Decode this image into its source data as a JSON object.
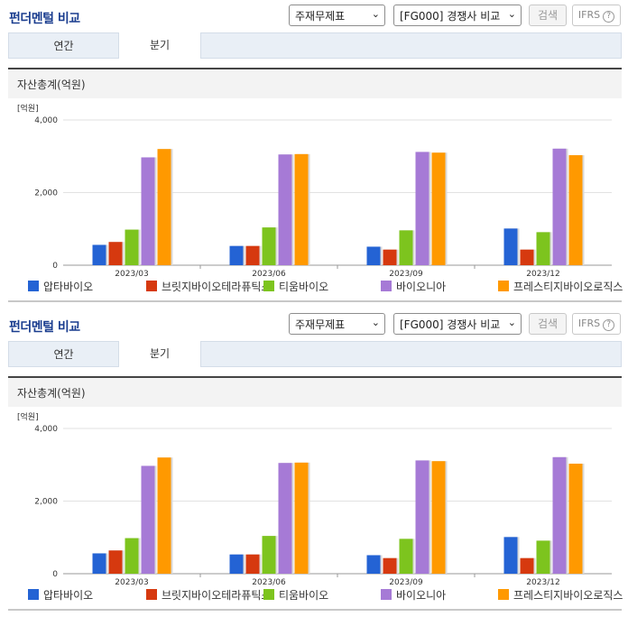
{
  "header": {
    "title": "펀더멘털 비교",
    "select_indicator": "주재무제표",
    "select_compare": "[FG000] 경쟁사 비교",
    "search_label": "검색",
    "ifrs_label": "IFRS",
    "help_glyph": "?"
  },
  "tabs": [
    {
      "label": "연간",
      "active": false
    },
    {
      "label": "분기",
      "active": true
    }
  ],
  "section_title": "자산총계(억원)",
  "colors": {
    "title": "#1a3d8f",
    "tab_bg": "#e9eff6",
    "series": [
      "#2463d4",
      "#d6390f",
      "#7dc41e",
      "#a67ad6",
      "#ff9900"
    ]
  },
  "chart_data": {
    "type": "bar",
    "unit_label": "[억원]",
    "categories": [
      "2023/03",
      "2023/06",
      "2023/09",
      "2023/12"
    ],
    "ylim": [
      0,
      4000
    ],
    "yticks": [
      0,
      2000,
      4000
    ],
    "ytick_labels": [
      "0",
      "2,000",
      "4,000"
    ],
    "grid": true,
    "legend_position": "bottom",
    "series": [
      {
        "name": "압타바이오",
        "values": [
          560,
          530,
          510,
          1010
        ]
      },
      {
        "name": "브릿지바이오테라퓨틱스",
        "values": [
          640,
          530,
          430,
          430
        ]
      },
      {
        "name": "티움바이오",
        "values": [
          980,
          1040,
          960,
          910
        ]
      },
      {
        "name": "바이오니아",
        "values": [
          2970,
          3050,
          3120,
          3210
        ]
      },
      {
        "name": "프레스티지바이오로직스",
        "values": [
          3200,
          3060,
          3100,
          3030
        ]
      }
    ]
  }
}
